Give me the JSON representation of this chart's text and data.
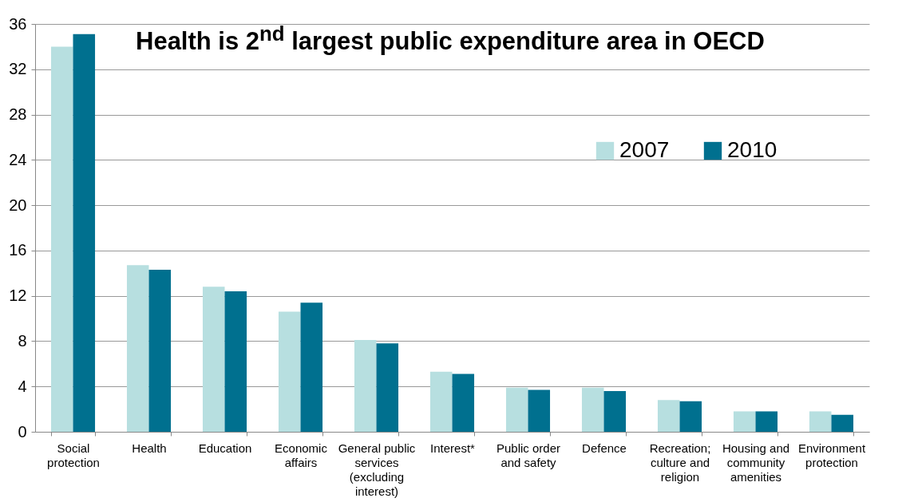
{
  "chart_data": {
    "type": "bar",
    "title": "Health is 2$^{nd}$ largest public expenditure area in OECD",
    "categories": [
      "Social protection",
      "Health",
      "Education",
      "Economic affairs",
      "General public services (excluding interest)",
      "Interest*",
      "Public order and safety",
      "Defence",
      "Recreation; culture and religion",
      "Housing and community amenities",
      "Environment protection"
    ],
    "series": [
      {
        "name": "2007",
        "color": "#b7dfe0",
        "values": [
          34.0,
          14.7,
          12.8,
          10.6,
          8.1,
          5.3,
          3.9,
          3.9,
          2.8,
          1.8,
          1.8
        ]
      },
      {
        "name": "2010",
        "color": "#00708f",
        "values": [
          35.1,
          14.3,
          12.4,
          11.4,
          7.8,
          5.1,
          3.7,
          3.6,
          2.7,
          1.8,
          1.5
        ]
      }
    ],
    "ylim": [
      0,
      36
    ],
    "yticks": [
      0,
      4,
      8,
      12,
      16,
      20,
      24,
      28,
      32,
      36
    ],
    "grid": "y",
    "legend": "top right"
  }
}
